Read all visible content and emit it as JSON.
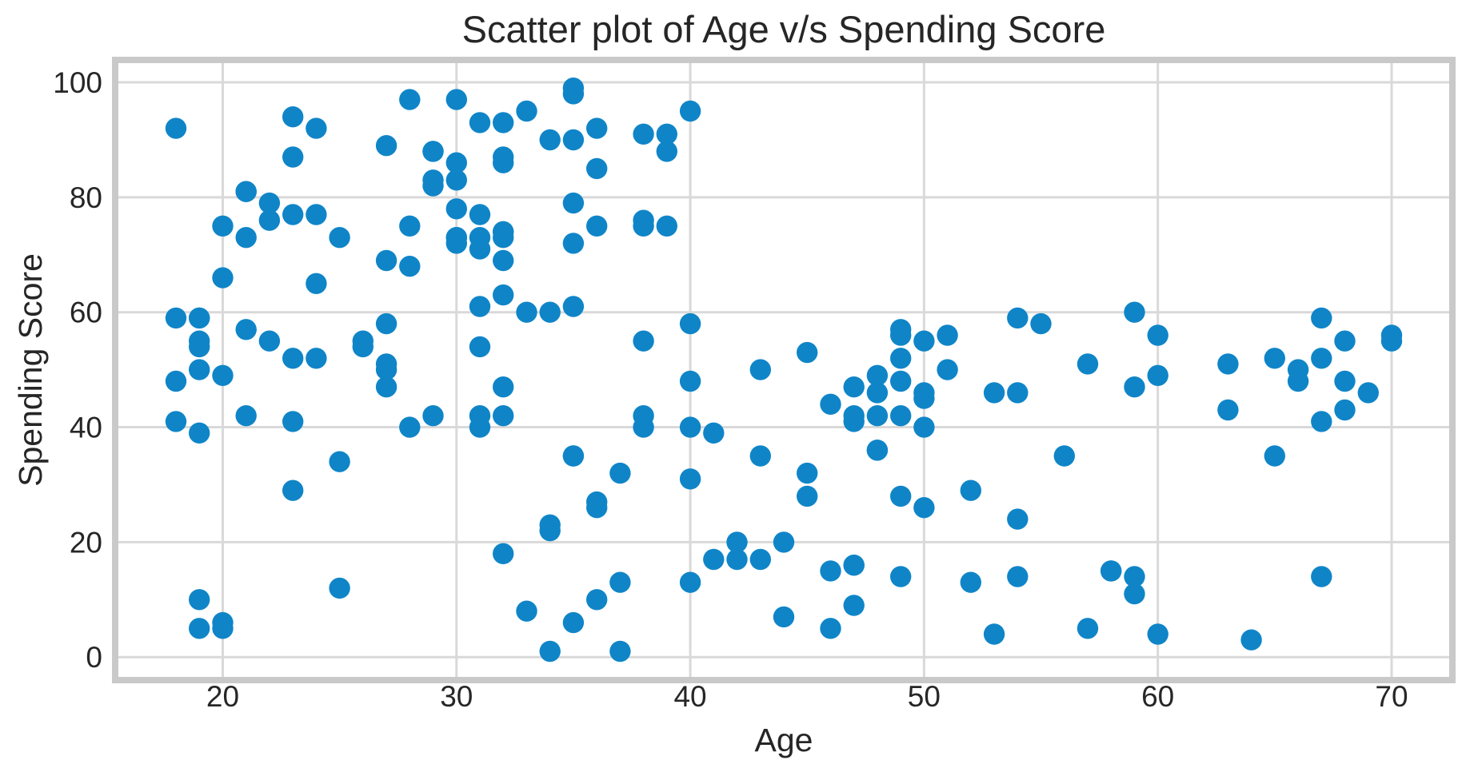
{
  "chart_data": {
    "type": "scatter",
    "title": "Scatter plot of Age v/s Spending Score",
    "xlabel": "Age",
    "ylabel": "Spending Score",
    "x_ticks": [
      20,
      30,
      40,
      50,
      60,
      70
    ],
    "y_ticks": [
      0,
      20,
      40,
      60,
      80,
      100
    ],
    "xlim": [
      15.4,
      72.6
    ],
    "ylim": [
      -4,
      103.9
    ],
    "grid": true,
    "legend_position": "none",
    "marker": {
      "color": "#0f85c8",
      "radius_px": 13.2
    },
    "colors": {
      "background": "#ffffff",
      "grid": "#d9d9d9",
      "spine": "#c9c9c9",
      "text": "#262626"
    },
    "points": [
      [
        19,
        39
      ],
      [
        21,
        81
      ],
      [
        20,
        6
      ],
      [
        23,
        77
      ],
      [
        31,
        40
      ],
      [
        22,
        76
      ],
      [
        35,
        6
      ],
      [
        23,
        94
      ],
      [
        64,
        3
      ],
      [
        30,
        72
      ],
      [
        67,
        14
      ],
      [
        35,
        99
      ],
      [
        58,
        15
      ],
      [
        24,
        77
      ],
      [
        37,
        13
      ],
      [
        22,
        79
      ],
      [
        35,
        35
      ],
      [
        20,
        66
      ],
      [
        52,
        29
      ],
      [
        35,
        98
      ],
      [
        35,
        35
      ],
      [
        25,
        73
      ],
      [
        46,
        5
      ],
      [
        31,
        73
      ],
      [
        54,
        14
      ],
      [
        29,
        82
      ],
      [
        45,
        32
      ],
      [
        35,
        61
      ],
      [
        40,
        31
      ],
      [
        23,
        87
      ],
      [
        60,
        4
      ],
      [
        21,
        73
      ],
      [
        53,
        4
      ],
      [
        18,
        92
      ],
      [
        49,
        14
      ],
      [
        21,
        81
      ],
      [
        42,
        17
      ],
      [
        30,
        73
      ],
      [
        36,
        26
      ],
      [
        20,
        75
      ],
      [
        65,
        35
      ],
      [
        24,
        92
      ],
      [
        48,
        36
      ],
      [
        31,
        61
      ],
      [
        49,
        28
      ],
      [
        24,
        65
      ],
      [
        50,
        55
      ],
      [
        27,
        47
      ],
      [
        29,
        42
      ],
      [
        31,
        42
      ],
      [
        49,
        52
      ],
      [
        33,
        60
      ],
      [
        31,
        54
      ],
      [
        59,
        60
      ],
      [
        50,
        45
      ],
      [
        47,
        41
      ],
      [
        51,
        50
      ],
      [
        69,
        46
      ],
      [
        27,
        51
      ],
      [
        53,
        46
      ],
      [
        70,
        56
      ],
      [
        19,
        55
      ],
      [
        67,
        52
      ],
      [
        54,
        59
      ],
      [
        63,
        51
      ],
      [
        18,
        59
      ],
      [
        43,
        50
      ],
      [
        68,
        48
      ],
      [
        19,
        59
      ],
      [
        32,
        47
      ],
      [
        70,
        55
      ],
      [
        47,
        42
      ],
      [
        60,
        49
      ],
      [
        60,
        56
      ],
      [
        59,
        47
      ],
      [
        26,
        54
      ],
      [
        45,
        53
      ],
      [
        40,
        48
      ],
      [
        23,
        52
      ],
      [
        49,
        42
      ],
      [
        57,
        51
      ],
      [
        38,
        55
      ],
      [
        67,
        41
      ],
      [
        46,
        44
      ],
      [
        21,
        57
      ],
      [
        48,
        46
      ],
      [
        55,
        58
      ],
      [
        22,
        55
      ],
      [
        34,
        60
      ],
      [
        50,
        46
      ],
      [
        68,
        55
      ],
      [
        18,
        41
      ],
      [
        48,
        49
      ],
      [
        40,
        40
      ],
      [
        32,
        42
      ],
      [
        24,
        52
      ],
      [
        47,
        47
      ],
      [
        27,
        50
      ],
      [
        48,
        42
      ],
      [
        20,
        49
      ],
      [
        23,
        41
      ],
      [
        49,
        48
      ],
      [
        67,
        59
      ],
      [
        26,
        55
      ],
      [
        49,
        56
      ],
      [
        21,
        42
      ],
      [
        66,
        50
      ],
      [
        54,
        46
      ],
      [
        68,
        43
      ],
      [
        66,
        48
      ],
      [
        65,
        52
      ],
      [
        19,
        54
      ],
      [
        38,
        42
      ],
      [
        19,
        50
      ],
      [
        18,
        48
      ],
      [
        19,
        59
      ],
      [
        63,
        43
      ],
      [
        49,
        57
      ],
      [
        51,
        56
      ],
      [
        50,
        40
      ],
      [
        27,
        58
      ],
      [
        38,
        40
      ],
      [
        40,
        58
      ],
      [
        39,
        91
      ],
      [
        23,
        29
      ],
      [
        31,
        77
      ],
      [
        43,
        35
      ],
      [
        40,
        95
      ],
      [
        59,
        11
      ],
      [
        38,
        75
      ],
      [
        47,
        9
      ],
      [
        39,
        75
      ],
      [
        25,
        34
      ],
      [
        31,
        71
      ],
      [
        20,
        5
      ],
      [
        29,
        88
      ],
      [
        44,
        7
      ],
      [
        32,
        73
      ],
      [
        19,
        10
      ],
      [
        35,
        72
      ],
      [
        57,
        5
      ],
      [
        32,
        93
      ],
      [
        28,
        40
      ],
      [
        32,
        87
      ],
      [
        25,
        12
      ],
      [
        28,
        97
      ],
      [
        48,
        36
      ],
      [
        32,
        74
      ],
      [
        34,
        22
      ],
      [
        34,
        90
      ],
      [
        43,
        17
      ],
      [
        39,
        88
      ],
      [
        44,
        20
      ],
      [
        38,
        76
      ],
      [
        47,
        16
      ],
      [
        27,
        89
      ],
      [
        37,
        1
      ],
      [
        30,
        78
      ],
      [
        34,
        1
      ],
      [
        30,
        73
      ],
      [
        56,
        35
      ],
      [
        29,
        83
      ],
      [
        19,
        5
      ],
      [
        31,
        93
      ],
      [
        50,
        26
      ],
      [
        36,
        75
      ],
      [
        42,
        20
      ],
      [
        33,
        95
      ],
      [
        36,
        27
      ],
      [
        32,
        63
      ],
      [
        40,
        13
      ],
      [
        28,
        75
      ],
      [
        36,
        10
      ],
      [
        36,
        92
      ],
      [
        52,
        13
      ],
      [
        30,
        86
      ],
      [
        58,
        15
      ],
      [
        27,
        69
      ],
      [
        59,
        14
      ],
      [
        35,
        90
      ],
      [
        37,
        32
      ],
      [
        32,
        86
      ],
      [
        46,
        15
      ],
      [
        29,
        88
      ],
      [
        41,
        39
      ],
      [
        30,
        97
      ],
      [
        54,
        24
      ],
      [
        28,
        68
      ],
      [
        41,
        17
      ],
      [
        36,
        85
      ],
      [
        34,
        23
      ],
      [
        32,
        69
      ],
      [
        33,
        8
      ],
      [
        38,
        91
      ],
      [
        47,
        16
      ],
      [
        35,
        79
      ],
      [
        45,
        28
      ],
      [
        32,
        74
      ],
      [
        32,
        18
      ],
      [
        30,
        83
      ]
    ]
  }
}
